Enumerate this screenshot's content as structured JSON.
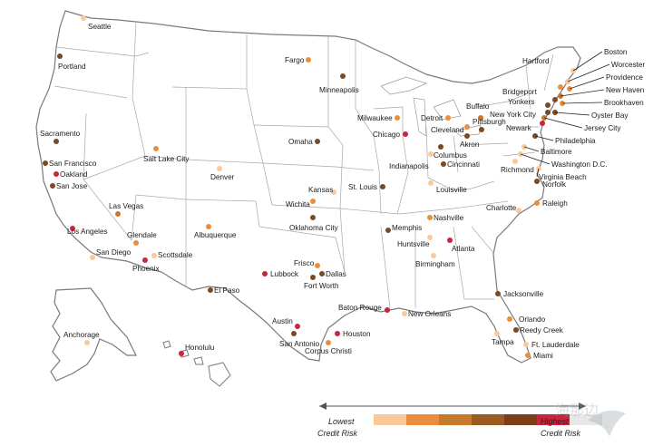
{
  "legend": {
    "low_line1": "Lowest",
    "low_line2": "Credit Risk",
    "high_line1": "Highest",
    "high_line2": "Credit Risk",
    "colors": [
      "#f9c99a",
      "#eb8d3a",
      "#c77a2c",
      "#9b5a22",
      "#7a3e18",
      "#c8253f",
      "#e7e7e7"
    ]
  },
  "risk_colors": {
    "1": "#f9c99a",
    "2": "#eb8d3a",
    "3": "#c77a2c",
    "4": "#7a4a24",
    "5": "#c8253f"
  },
  "cities": [
    {
      "name": "Seattle",
      "risk": 1
    },
    {
      "name": "Portland",
      "risk": 4
    },
    {
      "name": "Sacramento",
      "risk": 4
    },
    {
      "name": "San Francisco",
      "risk": 4
    },
    {
      "name": "Oakland",
      "risk": 5
    },
    {
      "name": "San Jose",
      "risk": 4
    },
    {
      "name": "Los Angeles",
      "risk": 5
    },
    {
      "name": "San Diego",
      "risk": 1
    },
    {
      "name": "Las Vegas",
      "risk": 3
    },
    {
      "name": "Glendale",
      "risk": 2
    },
    {
      "name": "Scottsdale",
      "risk": 1
    },
    {
      "name": "Phoenix",
      "risk": 5
    },
    {
      "name": "Salt Lake City",
      "risk": 2
    },
    {
      "name": "Denver",
      "risk": 1
    },
    {
      "name": "Albuquerque",
      "risk": 2
    },
    {
      "name": "El Paso",
      "risk": 4
    },
    {
      "name": "Fargo",
      "risk": 2
    },
    {
      "name": "Minneapolis",
      "risk": 4
    },
    {
      "name": "Omaha",
      "risk": 4
    },
    {
      "name": "Kansas",
      "risk": 1
    },
    {
      "name": "Wichita",
      "risk": 2
    },
    {
      "name": "Oklahoma City",
      "risk": 4
    },
    {
      "name": "Lubbock",
      "risk": 5
    },
    {
      "name": "Frisco",
      "risk": 2
    },
    {
      "name": "Dallas",
      "risk": 4
    },
    {
      "name": "Fort Worth",
      "risk": 4
    },
    {
      "name": "Austin",
      "risk": 5
    },
    {
      "name": "San Antonio",
      "risk": 4
    },
    {
      "name": "Houston",
      "risk": 5
    },
    {
      "name": "Corpus Christi",
      "risk": 2
    },
    {
      "name": "Milwaukee",
      "risk": 2
    },
    {
      "name": "Chicago",
      "risk": 5
    },
    {
      "name": "St. Louis",
      "risk": 4
    },
    {
      "name": "Indianapolis",
      "risk": 1
    },
    {
      "name": "Louisville",
      "risk": 1
    },
    {
      "name": "Memphis",
      "risk": 4
    },
    {
      "name": "Nashville",
      "risk": 2
    },
    {
      "name": "Huntsville",
      "risk": 1
    },
    {
      "name": "Birmingham",
      "risk": 1
    },
    {
      "name": "Atlanta",
      "risk": 5
    },
    {
      "name": "Baton Rouge",
      "risk": 5
    },
    {
      "name": "New Orleans",
      "risk": 1
    },
    {
      "name": "Detroit",
      "risk": 2
    },
    {
      "name": "Cleveland",
      "risk": 2
    },
    {
      "name": "Akron",
      "risk": 4
    },
    {
      "name": "Columbus",
      "risk": 4
    },
    {
      "name": "Cincinnati",
      "risk": 4
    },
    {
      "name": "Buffalo",
      "risk": 3
    },
    {
      "name": "Pittsburgh",
      "risk": 4
    },
    {
      "name": "Charlotte",
      "risk": 1
    },
    {
      "name": "Raleigh",
      "risk": 2
    },
    {
      "name": "Jacksonville",
      "risk": 4
    },
    {
      "name": "Orlando",
      "risk": 2
    },
    {
      "name": "Reedy Creek",
      "risk": 4
    },
    {
      "name": "Tampa",
      "risk": 1
    },
    {
      "name": "Ft. Lauderdale",
      "risk": 1
    },
    {
      "name": "Miami",
      "risk": 2
    },
    {
      "name": "Boston",
      "risk": 1
    },
    {
      "name": "Worcester",
      "risk": 1
    },
    {
      "name": "Providence",
      "risk": 2
    },
    {
      "name": "Hartford",
      "risk": 2
    },
    {
      "name": "New Haven",
      "risk": 3
    },
    {
      "name": "Bridgeport",
      "risk": 4
    },
    {
      "name": "Brookhaven",
      "risk": 2
    },
    {
      "name": "Yonkers",
      "risk": 4
    },
    {
      "name": "New York City",
      "risk": 4
    },
    {
      "name": "Oyster Bay",
      "risk": 4
    },
    {
      "name": "Jersey City",
      "risk": 3
    },
    {
      "name": "Newark",
      "risk": 5
    },
    {
      "name": "Philadelphia",
      "risk": 4
    },
    {
      "name": "Baltimore",
      "risk": 1
    },
    {
      "name": "Washington D.C.",
      "risk": 1
    },
    {
      "name": "Richmond",
      "risk": 1
    },
    {
      "name": "Virginia Beach",
      "risk": 1
    },
    {
      "name": "Norfolk",
      "risk": 4
    },
    {
      "name": "Anchorage",
      "risk": 1
    },
    {
      "name": "Honolulu",
      "risk": 5
    }
  ],
  "watermark": "海那边"
}
